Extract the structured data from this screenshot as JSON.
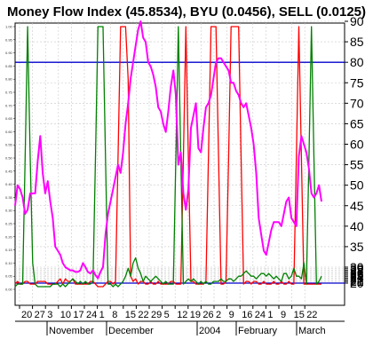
{
  "chart_data": {
    "type": "line",
    "title": "Money Flow Index (45.8534), BYU (0.0456), SELL (0.0125)",
    "colors": {
      "mfi": "#ff00ff",
      "buy": "#008000",
      "sell": "#ff0000",
      "threshold": "#0000cc",
      "grid": "#c8c8c8"
    },
    "y_right": {
      "ylim": [
        20,
        90
      ],
      "ticks": [
        "20",
        "21",
        "22",
        "23",
        "24",
        "25",
        "26",
        "27",
        "28",
        "29",
        "30",
        "35",
        "40",
        "45",
        "50",
        "55",
        "60",
        "65",
        "70",
        "75",
        "80",
        "85",
        "90"
      ]
    },
    "y_left": {
      "ylim": [
        0,
        1
      ],
      "ticks": [
        "0.00",
        "0.05",
        "0.10",
        "0.15",
        "0.20",
        "0.25",
        "0.30",
        "0.35",
        "0.40",
        "0.45",
        "0.50",
        "0.55",
        "0.60",
        "0.65",
        "0.70",
        "0.75",
        "0.80",
        "0.85",
        "0.90",
        "0.95",
        "1.00"
      ]
    },
    "thresholds": [
      80,
      20
    ],
    "x_ticks": [
      "20",
      "27",
      "3",
      "10",
      "17",
      "24",
      "1",
      "8",
      "15",
      "22",
      "29",
      "5",
      "12",
      "19",
      "26",
      "2",
      "9",
      "16",
      "24",
      "1",
      "9",
      "15",
      "22"
    ],
    "months": [
      "November",
      "December",
      "2004",
      "February",
      "March"
    ],
    "grid": true,
    "series": [
      {
        "key": "mfi",
        "values": [
          45,
          50,
          49,
          47,
          43,
          44,
          48,
          48,
          48,
          56,
          62,
          53,
          48,
          51,
          46,
          42,
          35,
          34,
          33,
          31,
          30,
          29,
          28,
          28,
          27,
          27,
          28,
          31,
          30,
          27,
          26,
          28,
          25,
          23,
          27,
          30,
          38,
          43,
          46,
          49,
          52,
          55,
          53,
          58,
          65,
          70,
          76,
          80,
          84,
          88,
          90,
          86,
          85,
          80,
          79,
          77,
          74,
          69,
          68,
          65,
          63,
          68,
          74,
          78,
          72,
          55,
          58,
          48,
          44,
          49,
          64,
          67,
          70,
          59,
          58,
          64,
          69,
          70,
          72,
          76,
          80,
          81,
          81,
          80,
          79,
          78,
          75,
          75,
          73,
          72,
          70,
          69,
          70,
          67,
          64,
          60,
          53,
          42,
          38,
          34,
          33,
          36,
          39,
          41,
          41,
          41,
          40,
          43,
          46,
          47,
          42,
          41,
          40,
          57,
          62,
          60,
          58,
          54,
          48,
          47,
          48,
          50,
          46
        ]
      },
      {
        "key": "buy",
        "values": [
          0.01,
          0.02,
          0.02,
          0.02,
          0.5,
          1.0,
          0.5,
          0.1,
          0.02,
          0.01,
          0.01,
          0.01,
          0.01,
          0.01,
          0.01,
          0.02,
          0.02,
          0.02,
          0.01,
          0.02,
          0.01,
          0.02,
          0.03,
          0.04,
          0.03,
          0.02,
          0.03,
          0.02,
          0.03,
          0.02,
          0.02,
          0.03,
          0.5,
          1.0,
          1.0,
          1.0,
          0.5,
          0.02,
          0.02,
          0.01,
          0.02,
          0.01,
          0.02,
          0.03,
          0.05,
          0.08,
          0.05,
          0.1,
          0.12,
          0.08,
          0.06,
          0.03,
          0.05,
          0.04,
          0.03,
          0.04,
          0.05,
          0.04,
          0.03,
          0.02,
          0.03,
          0.02,
          0.02,
          0.02,
          0.5,
          1.0,
          0.5,
          0.02,
          0.03,
          0.04,
          0.03,
          0.04,
          0.03,
          0.02,
          0.03,
          0.02,
          0.03,
          0.02,
          0.02,
          0.03,
          0.03,
          0.03,
          0.04,
          0.03,
          0.03,
          0.04,
          0.04,
          0.03,
          0.04,
          0.05,
          0.05,
          0.06,
          0.07,
          0.06,
          0.05,
          0.05,
          0.04,
          0.05,
          0.06,
          0.06,
          0.05,
          0.06,
          0.05,
          0.04,
          0.05,
          0.04,
          0.03,
          0.06,
          0.06,
          0.04,
          0.05,
          0.08,
          0.05,
          0.05,
          0.04,
          0.1,
          0.02,
          0.5,
          1.0,
          0.5,
          0.02,
          0.03,
          0.05
        ]
      },
      {
        "key": "sell",
        "values": [
          0.02,
          0.03,
          0.02,
          0.02,
          0.03,
          0.03,
          0.02,
          0.02,
          0.02,
          0.03,
          0.03,
          0.03,
          0.03,
          0.02,
          0.02,
          0.02,
          0.02,
          0.03,
          0.04,
          0.02,
          0.04,
          0.03,
          0.03,
          0.04,
          0.02,
          0.02,
          0.02,
          0.02,
          0.02,
          0.02,
          0.03,
          0.03,
          0.02,
          0.01,
          0.01,
          0.01,
          0.02,
          0.03,
          0.03,
          0.02,
          0.03,
          0.5,
          1.0,
          1.0,
          1.0,
          0.8,
          0.05,
          0.03,
          0.04,
          0.02,
          0.03,
          0.03,
          0.02,
          0.02,
          0.03,
          0.02,
          0.02,
          0.03,
          0.02,
          0.02,
          0.02,
          0.02,
          0.03,
          0.03,
          0.02,
          0.02,
          0.02,
          0.5,
          1.0,
          0.5,
          0.03,
          0.03,
          0.02,
          0.02,
          0.02,
          0.02,
          0.03,
          0.5,
          1.0,
          1.0,
          1.0,
          0.5,
          0.02,
          0.02,
          0.03,
          0.5,
          1.0,
          1.0,
          1.0,
          1.0,
          0.5,
          0.02,
          0.03,
          0.03,
          0.02,
          0.03,
          0.03,
          0.02,
          0.02,
          0.03,
          0.02,
          0.02,
          0.02,
          0.03,
          0.02,
          0.02,
          0.03,
          0.02,
          0.02,
          0.03,
          0.02,
          0.02,
          0.5,
          1.0,
          0.5,
          0.02,
          0.02,
          0.02,
          0.02,
          0.02,
          0.02,
          0.02,
          0.02
        ]
      }
    ]
  }
}
